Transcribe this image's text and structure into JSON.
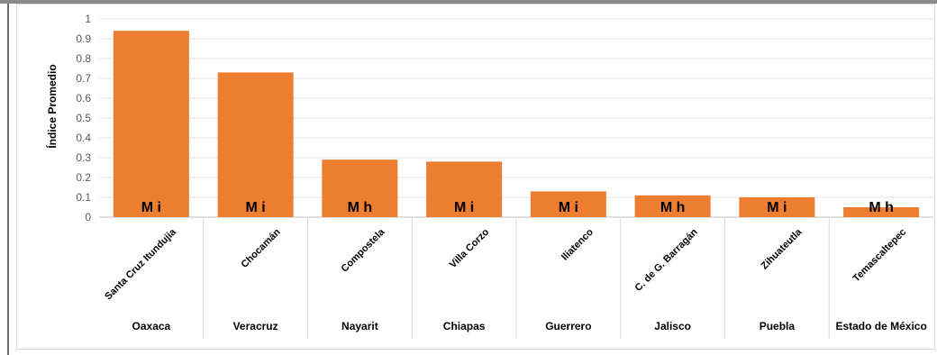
{
  "chart_data": {
    "type": "bar",
    "title": "",
    "ylabel": "Índice Promedio",
    "xlabel": "",
    "ylim": [
      0,
      1
    ],
    "yticks": [
      "0",
      "0.1",
      "0.2",
      "0.3",
      "0.4",
      "0.5",
      "0.6",
      "0.7",
      "0.8",
      "0.9",
      "1"
    ],
    "grid": true,
    "bar_color": "#ED7D31",
    "categories": [
      "Santa Cruz Itundujia",
      "Chocamán",
      "Compostela",
      "Villa Corzo",
      "Iliatenco",
      "C. de G. Barragán",
      "Zihuateutla",
      "Temascaltepec"
    ],
    "groups": [
      "Oaxaca",
      "Veracruz",
      "Nayarit",
      "Chiapas",
      "Guerrero",
      "Jalisco",
      "Puebla",
      "Estado de México"
    ],
    "values": [
      0.94,
      0.73,
      0.29,
      0.28,
      0.13,
      0.11,
      0.1,
      0.05
    ],
    "bar_labels": [
      "M i",
      "M i",
      "M h",
      "M i",
      "M i",
      "M h",
      "M i",
      "M h"
    ]
  }
}
